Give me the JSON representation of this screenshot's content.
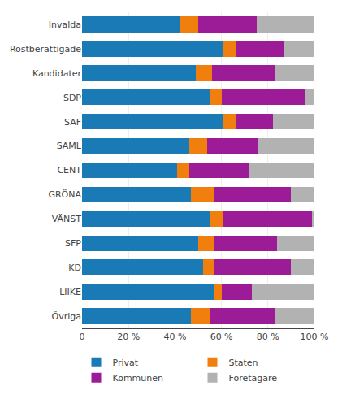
{
  "chart_data": {
    "type": "bar",
    "orientation": "horizontal",
    "stacked": true,
    "categories": [
      "Invalda",
      "Röstberättigade",
      "Kandidater",
      "SDP",
      "SAF",
      "SAML",
      "CENT",
      "GRÖNA",
      "VÄNST",
      "SFP",
      "KD",
      "LIIKE",
      "Övriga"
    ],
    "series": [
      {
        "name": "Privat",
        "color": "#1a7ab5",
        "values": [
          42,
          61,
          49,
          55,
          61,
          46,
          41,
          47,
          55,
          50,
          52,
          57,
          47
        ]
      },
      {
        "name": "Staten",
        "color": "#f07f0e",
        "values": [
          8,
          5,
          7,
          5,
          5,
          8,
          5,
          10,
          6,
          7,
          5,
          3,
          8
        ]
      },
      {
        "name": "Kommunen",
        "color": "#9c1b97",
        "values": [
          25,
          21,
          27,
          36,
          16,
          22,
          26,
          33,
          38,
          27,
          33,
          13,
          28
        ]
      },
      {
        "name": "Företagare",
        "color": "#b2b2b2",
        "values": [
          25,
          13,
          17,
          4,
          18,
          24,
          28,
          10,
          1,
          16,
          10,
          27,
          17
        ]
      }
    ],
    "xlim": [
      0,
      100
    ],
    "xticks": [
      0,
      {
        "value": 20,
        "label": "20 %"
      },
      {
        "value": 40,
        "label": "40 %"
      },
      {
        "value": 60,
        "label": "60 %"
      },
      {
        "value": 80,
        "label": "80 %"
      },
      {
        "value": 100,
        "label": "100 %"
      }
    ],
    "grid": true,
    "legend": "bottom"
  }
}
